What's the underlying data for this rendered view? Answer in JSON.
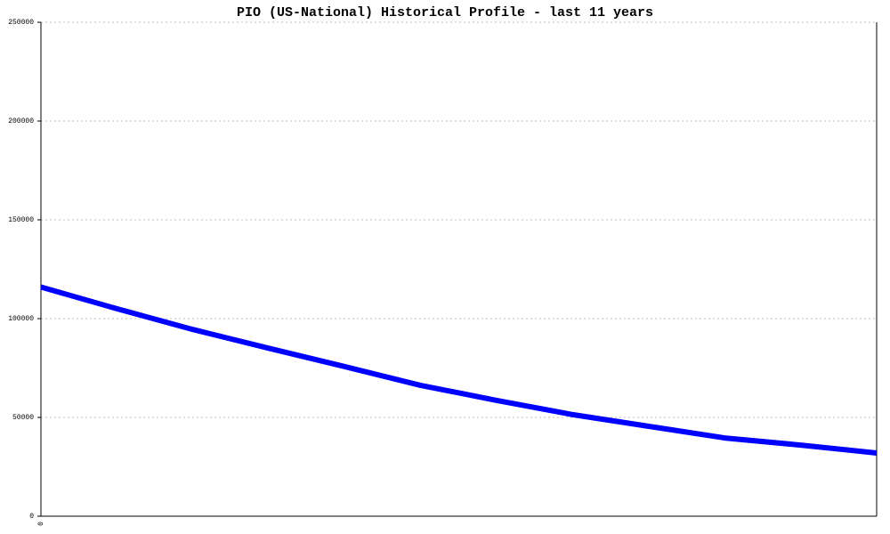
{
  "chart_data": {
    "type": "line",
    "title": "PIO (US-National) Historical Profile - last 11 years",
    "categories": [
      "0",
      null,
      null,
      null,
      null,
      null,
      null,
      null,
      null,
      null,
      null,
      null
    ],
    "series": [
      {
        "name": "PIO",
        "color": "#0000ff",
        "values": [
          116000,
          105000,
          94500,
          85000,
          75700,
          66200,
          58600,
          51400,
          45500,
          39600,
          36000,
          32000
        ]
      }
    ],
    "ylim": [
      0,
      250000
    ],
    "yticks": [
      0,
      50000,
      100000,
      150000,
      200000,
      250000
    ],
    "grid": true
  }
}
